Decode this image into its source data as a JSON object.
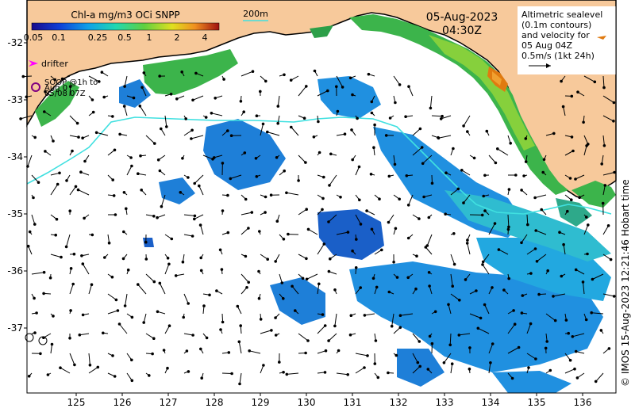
{
  "colorbar": {
    "title": "Chl-a mg/m3 OCi SNPP",
    "ticks": [
      "0.05",
      "0.1",
      "0.25",
      "0.5",
      "1",
      "2",
      "4"
    ]
  },
  "scale_bar_label": "200m",
  "date": "05-Aug-2023",
  "time": "04:30Z",
  "legend": {
    "line1": "Altimetric sealevel",
    "line2": "(0.1m contours)",
    "line3": "and velocity for",
    "line4": "05 Aug 04Z",
    "line5": "0.5m/s (1kt 24h)"
  },
  "drifter_label": "drifter",
  "soop": {
    "line1": "SOOP @1h to",
    "line2": "Aug 0",
    "line3": "05/08 07Z"
  },
  "credit": "© IMOS 15-Aug-2023 12:21:46 Hobart time",
  "axes": {
    "lat_labels": [
      "-32",
      "-33",
      "-34",
      "-35",
      "-36",
      "-37"
    ],
    "lon_labels": [
      "125",
      "126",
      "127",
      "128",
      "129",
      "130",
      "131",
      "132",
      "133",
      "134",
      "135",
      "136"
    ]
  },
  "colors": {
    "land": "#f7c99b",
    "ocean": "#ffffff",
    "contour": "#40e0e0",
    "drifter": "#ff00ff",
    "soop": "#800080"
  }
}
